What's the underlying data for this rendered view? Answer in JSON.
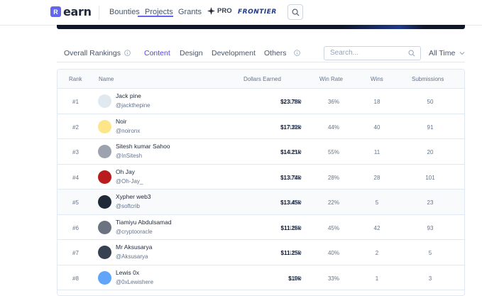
{
  "nav": {
    "logo_mark": "R",
    "logo_text": "earn",
    "links": [
      "Bounties",
      "Projects",
      "Grants"
    ],
    "pro_label": "PRO",
    "frontier_label": "FRONTIER"
  },
  "tabs": {
    "items": [
      "Overall Rankings",
      "Content",
      "Design",
      "Development",
      "Others"
    ],
    "active": "Content"
  },
  "search": {
    "placeholder": "Search..."
  },
  "time_filter": {
    "selected": "All Time"
  },
  "table": {
    "headers": {
      "rank": "Rank",
      "name": "Name",
      "dollars": "Dollars Earned",
      "win_rate": "Win Rate",
      "wins": "Wins",
      "submissions": "Submissions"
    },
    "currency": "USD",
    "rows": [
      {
        "rank": "#1",
        "name": "Jack pine",
        "handle": "@jackthepine",
        "dollars": "$23.78k",
        "win_rate": "36%",
        "wins": "18",
        "submissions": "50",
        "avatar_bg": "#e2e8f0"
      },
      {
        "rank": "#2",
        "name": "Noir",
        "handle": "@noironx",
        "dollars": "$17.32k",
        "win_rate": "44%",
        "wins": "40",
        "submissions": "91",
        "avatar_bg": "#fde68a"
      },
      {
        "rank": "#3",
        "name": "Sitesh kumar Sahoo",
        "handle": "@InSitesh",
        "dollars": "$14.21k",
        "win_rate": "55%",
        "wins": "11",
        "submissions": "20",
        "avatar_bg": "#9ca3af"
      },
      {
        "rank": "#4",
        "name": "Oh Jay",
        "handle": "@Oh-Jay_",
        "dollars": "$13.74k",
        "win_rate": "28%",
        "wins": "28",
        "submissions": "101",
        "avatar_bg": "#b91c1c"
      },
      {
        "rank": "#5",
        "name": "Xypher web3",
        "handle": "@softcrib",
        "dollars": "$13.45k",
        "win_rate": "22%",
        "wins": "5",
        "submissions": "23",
        "avatar_bg": "#1f2937"
      },
      {
        "rank": "#6",
        "name": "Tiamiyu Abdulsamad",
        "handle": "@cryptooracle",
        "dollars": "$11.26k",
        "win_rate": "45%",
        "wins": "42",
        "submissions": "93",
        "avatar_bg": "#6b7280"
      },
      {
        "rank": "#7",
        "name": "Mr Aksusarya",
        "handle": "@Aksusarya",
        "dollars": "$11.25k",
        "win_rate": "40%",
        "wins": "2",
        "submissions": "5",
        "avatar_bg": "#374151"
      },
      {
        "rank": "#8",
        "name": "Lewis 0x",
        "handle": "@0xLewishere",
        "dollars": "$10k",
        "win_rate": "33%",
        "wins": "1",
        "submissions": "3",
        "avatar_bg": "#60a5fa"
      }
    ],
    "highlighted_row": 4
  },
  "colors": {
    "accent": "#6366f1",
    "border": "#e2e8f0",
    "text_muted": "#64748b"
  }
}
